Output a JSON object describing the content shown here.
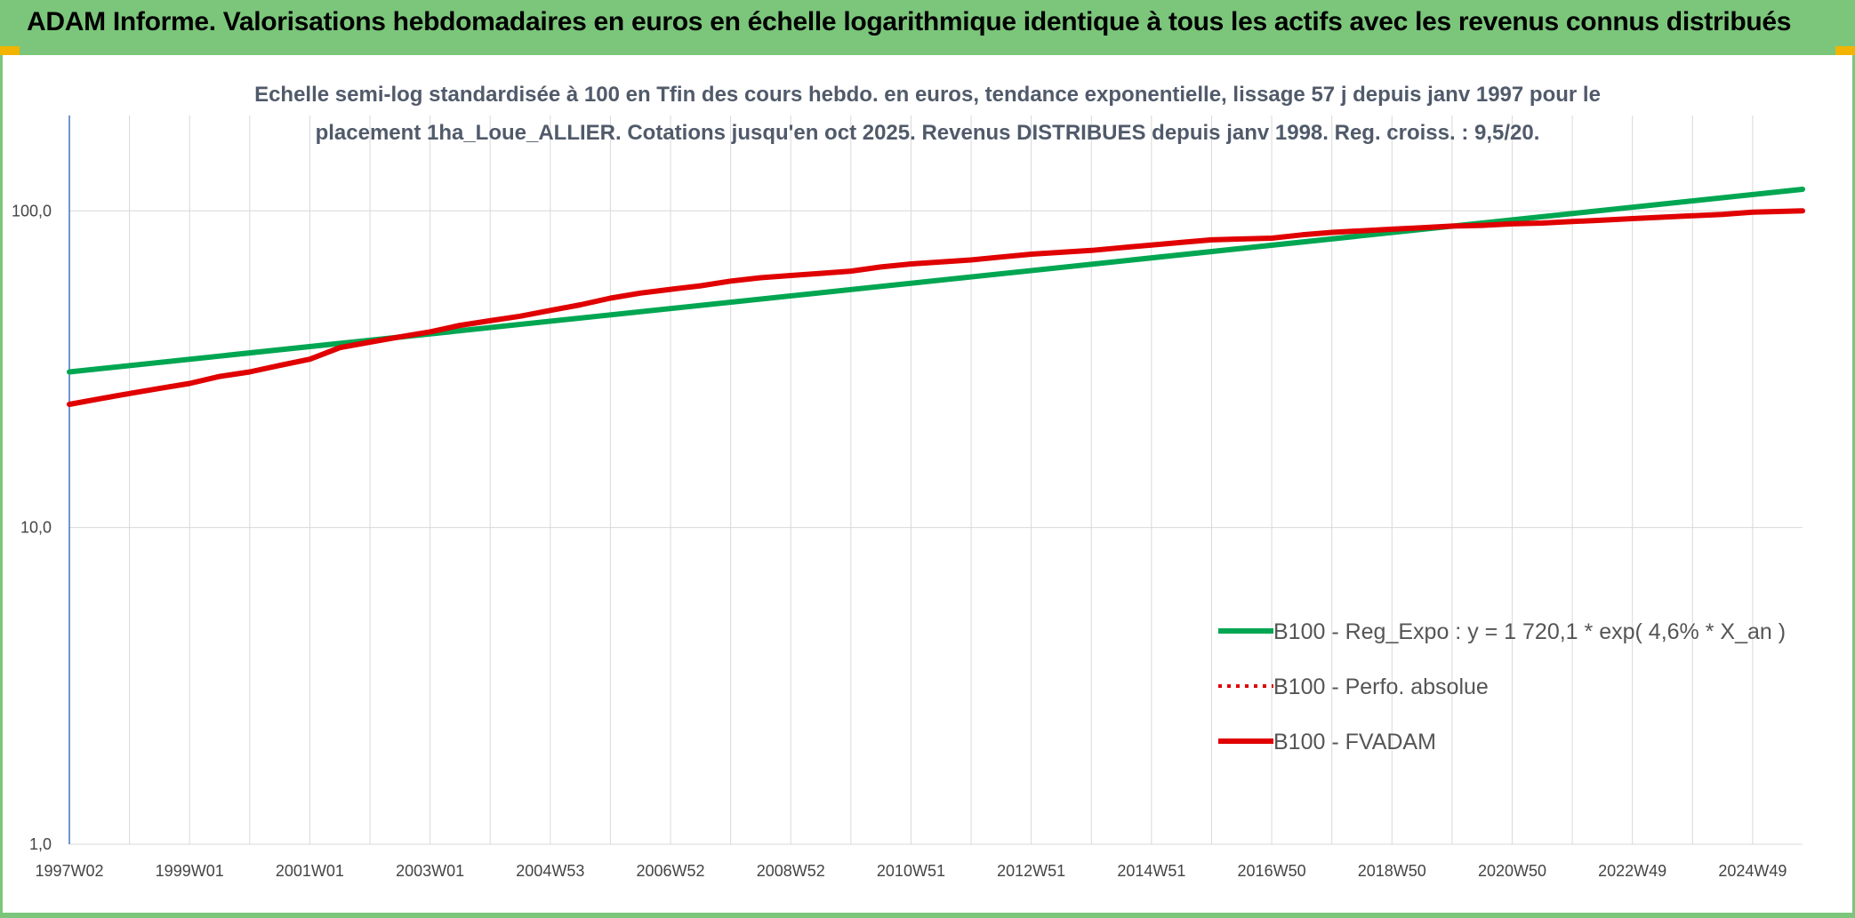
{
  "header": {
    "title": "ADAM Informe. Valorisations hebdomadaires en euros en échelle logarithmique identique à tous les actifs avec les revenus connus distribués"
  },
  "chart_data": {
    "type": "line",
    "title_line1": "Echelle semi-log standardisée à 100 en Tfin des cours hebdo. en euros, tendance exponentielle, lissage 57 j depuis janv 1997 pour le",
    "title_line2": "placement 1ha_Loue_ALLIER. Cotations jusqu'en oct 2025. Revenus DISTRIBUES depuis janv 1998. Reg. croiss. : 9,5/20.",
    "y_scale": "log",
    "ylim": [
      1,
      200
    ],
    "y_ticks": [
      {
        "value": 1,
        "label": "1,0"
      },
      {
        "value": 10,
        "label": "10,0"
      },
      {
        "value": 100,
        "label": "100,0"
      }
    ],
    "xlim": [
      1997.0,
      2025.83
    ],
    "x_ticks": [
      {
        "value": 1997.0,
        "label": "1997W02"
      },
      {
        "value": 1999.0,
        "label": "1999W01"
      },
      {
        "value": 2001.0,
        "label": "2001W01"
      },
      {
        "value": 2003.0,
        "label": "2003W01"
      },
      {
        "value": 2005.0,
        "label": "2004W53"
      },
      {
        "value": 2007.0,
        "label": "2006W52"
      },
      {
        "value": 2009.0,
        "label": "2008W52"
      },
      {
        "value": 2011.0,
        "label": "2010W51"
      },
      {
        "value": 2013.0,
        "label": "2012W51"
      },
      {
        "value": 2015.0,
        "label": "2014W51"
      },
      {
        "value": 2017.0,
        "label": "2016W50"
      },
      {
        "value": 2019.0,
        "label": "2018W50"
      },
      {
        "value": 2021.0,
        "label": "2020W50"
      },
      {
        "value": 2023.0,
        "label": "2022W49"
      },
      {
        "value": 2025.0,
        "label": "2024W49"
      }
    ],
    "grid": true,
    "legend_position": "right",
    "series": [
      {
        "name": "B100 - Reg_Expo : y = 1 720,1 * exp( 4,6% *  X_an )",
        "color": "#00a651",
        "style": "solid",
        "x": [
          1997.0,
          2025.83
        ],
        "y": [
          31.0,
          117.0
        ]
      },
      {
        "name": "B100 - Perfo. absolue",
        "color": "#e00000",
        "style": "dotted",
        "x": [],
        "y": []
      },
      {
        "name": "B100 - FVADAM",
        "color": "#e00000",
        "style": "solid",
        "x": [
          1997.0,
          1997.5,
          1998.0,
          1998.5,
          1999.0,
          1999.5,
          2000.0,
          2000.5,
          2001.0,
          2001.5,
          2002.0,
          2002.5,
          2003.0,
          2003.5,
          2004.0,
          2004.5,
          2005.0,
          2005.5,
          2006.0,
          2006.5,
          2007.0,
          2007.5,
          2008.0,
          2008.5,
          2009.0,
          2009.5,
          2010.0,
          2010.5,
          2011.0,
          2011.5,
          2012.0,
          2012.5,
          2013.0,
          2013.5,
          2014.0,
          2014.5,
          2015.0,
          2015.5,
          2016.0,
          2016.5,
          2017.0,
          2017.5,
          2018.0,
          2018.5,
          2019.0,
          2019.5,
          2020.0,
          2020.5,
          2021.0,
          2021.5,
          2022.0,
          2022.5,
          2023.0,
          2023.5,
          2024.0,
          2024.5,
          2025.0,
          2025.83
        ],
        "y": [
          24.5,
          25.5,
          26.5,
          27.5,
          28.5,
          30.0,
          31.0,
          32.5,
          34.0,
          37.0,
          38.5,
          40.0,
          41.5,
          43.5,
          45.0,
          46.5,
          48.5,
          50.5,
          53.0,
          55.0,
          56.5,
          58.0,
          60.0,
          61.5,
          62.5,
          63.5,
          64.5,
          66.5,
          68.0,
          69.0,
          70.0,
          71.5,
          73.0,
          74.0,
          75.0,
          76.5,
          78.0,
          79.5,
          81.0,
          81.5,
          82.0,
          84.0,
          85.5,
          86.5,
          87.5,
          88.5,
          89.5,
          90.0,
          91.0,
          91.5,
          92.5,
          93.5,
          94.5,
          95.5,
          96.5,
          97.5,
          99.0,
          100.0
        ]
      }
    ]
  }
}
